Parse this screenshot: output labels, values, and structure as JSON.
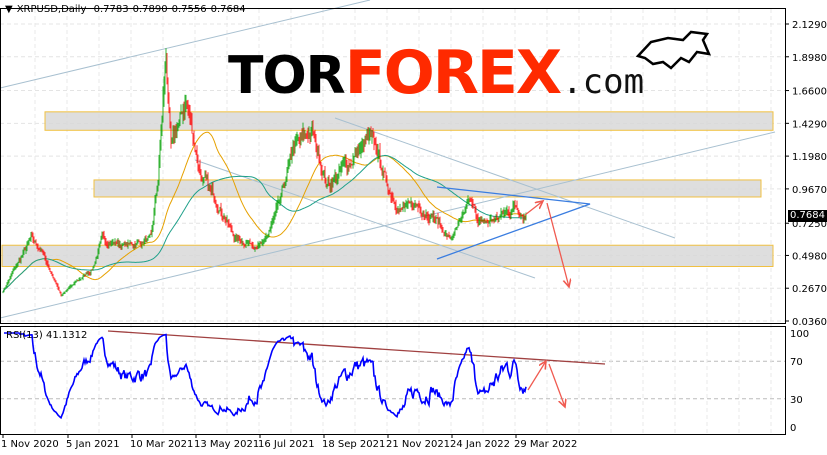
{
  "header": {
    "symbol": "XRPUSD,Daily",
    "open": "0.7783",
    "high": "0.7890",
    "low": "0.7556",
    "close": "0.7684"
  },
  "logo": {
    "text_black": "TOR",
    "text_red": "FOREX",
    "text_domain": ".com",
    "icon": "bull-icon"
  },
  "rsi": {
    "label": "RSI(13) 41.1312",
    "period": 13,
    "levels": [
      70,
      30
    ]
  },
  "colors": {
    "bull": "#00a000",
    "bear": "#ff0000",
    "rsi": "#0000ff",
    "ma_fast": "#e6a100",
    "ma_slow": "#1fa08a",
    "zone_border": "#f0c040",
    "zone_fill": "#d8d8d8",
    "triangle": "#3a7de0",
    "arrow": "#f05a50",
    "rsi_trend": "#a04040",
    "channel": "#a8c0d0"
  },
  "chart_data": {
    "type": "candlestick",
    "symbol": "XRPUSD",
    "timeframe": "Daily",
    "price_ticks": [
      "2.1290",
      "1.8980",
      "1.6600",
      "1.4290",
      "1.1980",
      "0.9670",
      "0.7250",
      "0.4980",
      "0.2670",
      "0.0360"
    ],
    "current_price": "0.7684",
    "rsi_ticks": [
      "100",
      "70",
      "30",
      "0"
    ],
    "date_ticks": [
      "1 Nov 2020",
      "5 Jan 2021",
      "10 Mar 2021",
      "13 May 2021",
      "16 Jul 2021",
      "18 Sep 2021",
      "21 Nov 2021",
      "24 Jan 2022",
      "29 Mar 2022"
    ],
    "ylim": [
      0.036,
      2.129
    ],
    "grid": true,
    "approx_closes": [
      [
        "2020-11-01",
        0.25
      ],
      [
        "2020-11-29",
        0.61
      ],
      [
        "2020-12-09",
        0.54
      ],
      [
        "2020-12-29",
        0.22
      ],
      [
        "2021-01-29",
        0.4
      ],
      [
        "2021-02-08",
        0.61
      ],
      [
        "2021-03-04",
        0.57
      ],
      [
        "2021-03-29",
        0.61
      ],
      [
        "2021-04-05",
        1.03
      ],
      [
        "2021-04-13",
        1.91
      ],
      [
        "2021-04-18",
        1.24
      ],
      [
        "2021-05-03",
        1.59
      ],
      [
        "2021-05-19",
        1.03
      ],
      [
        "2021-06-02",
        0.89
      ],
      [
        "2021-06-22",
        0.61
      ],
      [
        "2021-07-20",
        0.57
      ],
      [
        "2021-08-06",
        0.89
      ],
      [
        "2021-08-18",
        1.24
      ],
      [
        "2021-09-06",
        1.38
      ],
      [
        "2021-09-21",
        0.99
      ],
      [
        "2021-10-10",
        1.13
      ],
      [
        "2021-11-01",
        1.31
      ],
      [
        "2021-11-10",
        1.24
      ],
      [
        "2021-11-20",
        0.99
      ],
      [
        "2021-12-04",
        0.82
      ],
      [
        "2021-12-20",
        0.85
      ],
      [
        "2022-01-05",
        0.78
      ],
      [
        "2022-01-22",
        0.61
      ],
      [
        "2022-02-04",
        0.75
      ],
      [
        "2022-02-09",
        0.89
      ],
      [
        "2022-02-24",
        0.71
      ],
      [
        "2022-03-14",
        0.78
      ],
      [
        "2022-03-29",
        0.85
      ],
      [
        "2022-04-08",
        0.7684
      ]
    ],
    "zones": [
      [
        1.38,
        1.51
      ],
      [
        0.91,
        1.03
      ],
      [
        0.42,
        0.57
      ]
    ]
  }
}
